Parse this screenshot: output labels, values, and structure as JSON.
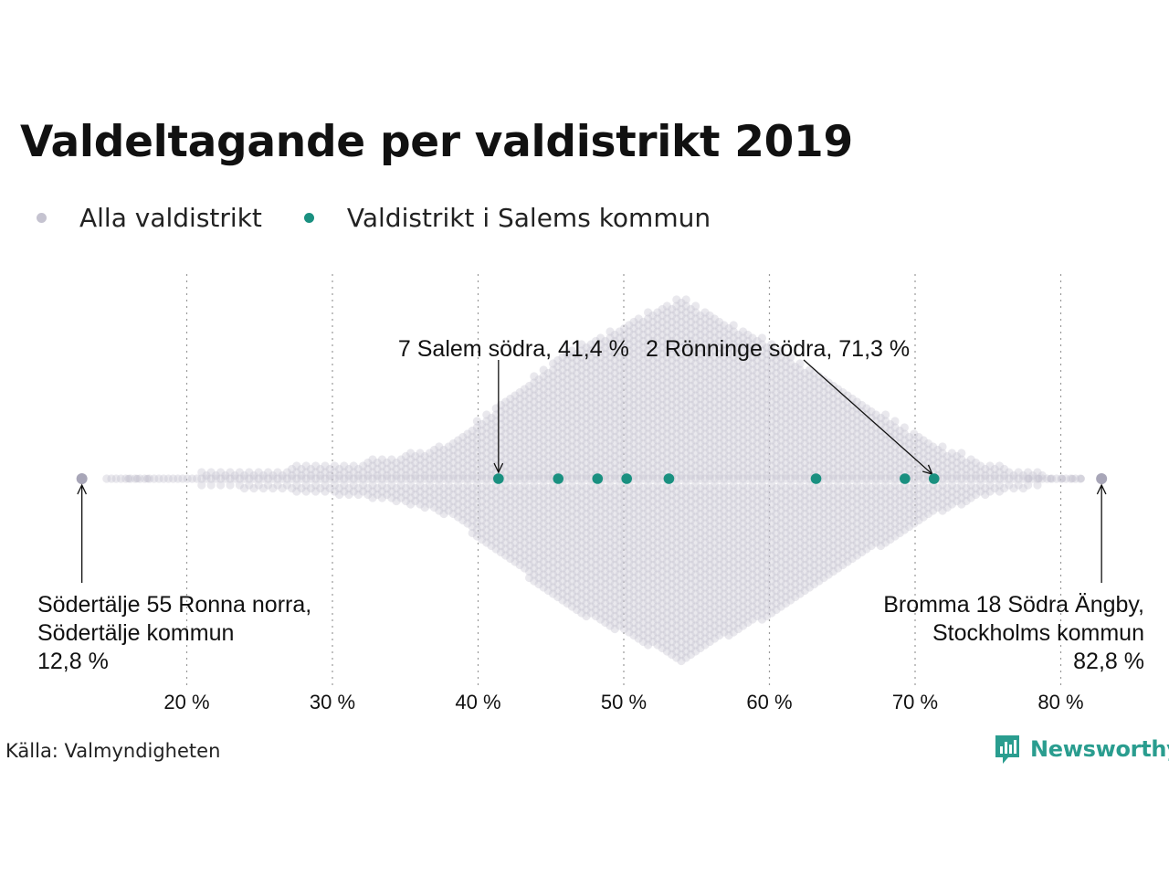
{
  "title": "Valdeltagande per valdistrikt 2019",
  "legend": [
    {
      "label": "Alla valdistrikt",
      "color": "#c5c3d0"
    },
    {
      "label": "Valdistrikt i Salems kommun",
      "color": "#1a9080"
    }
  ],
  "source": "Källa: Valmyndigheten",
  "brand": {
    "name": "Newsworthy",
    "icon": "newsworthy-logo-icon",
    "color": "#2a9d8f"
  },
  "chart_data": {
    "type": "scatter",
    "title": "Valdeltagande per valdistrikt 2019",
    "xlabel": "",
    "ylabel": "",
    "xlim": [
      12,
      84
    ],
    "x_ticks": [
      20,
      30,
      40,
      50,
      60,
      70,
      80
    ],
    "x_tick_labels": [
      "20 %",
      "30 %",
      "40 %",
      "50 %",
      "60 %",
      "70 %",
      "80 %"
    ],
    "grid": "vertical dotted",
    "legend_position": "top-left",
    "series": [
      {
        "name": "Alla valdistrikt",
        "color": "#c5c3d0",
        "distribution": "beeswarm, densest around 54 %, range 12,8 % – 82,8 %",
        "highlighted": [
          12.8,
          82.8
        ]
      },
      {
        "name": "Valdistrikt i Salems kommun",
        "color": "#1a9080",
        "values": [
          41.4,
          45.5,
          48.2,
          50.2,
          53.1,
          63.2,
          69.3,
          71.3
        ]
      }
    ],
    "annotations": [
      {
        "text": "7 Salem södra, 41,4 %",
        "x": 41.4
      },
      {
        "text": "2 Rönninge södra, 71,3 %",
        "x": 71.3
      },
      {
        "lines": [
          "Södertälje 55 Ronna norra,",
          "Södertälje kommun",
          "12,8 %"
        ],
        "x": 12.8,
        "align": "left"
      },
      {
        "lines": [
          "Bromma 18 Södra Ängby,",
          "Stockholms kommun",
          "82,8 %"
        ],
        "x": 82.8,
        "align": "right"
      }
    ]
  }
}
